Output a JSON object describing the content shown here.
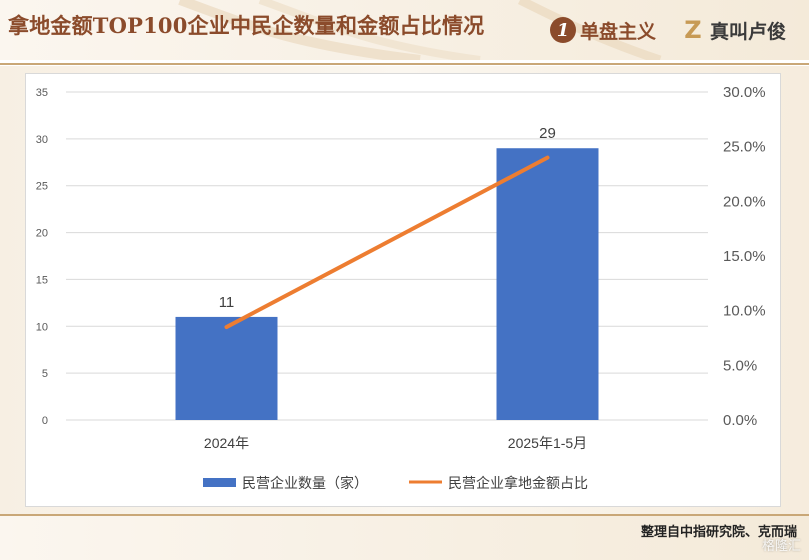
{
  "header": {
    "title": "拿地金额TOP100企业中民企数量和金额占比情况",
    "brand1_icon": "1",
    "brand1_name": "单盘主义",
    "brand2_icon": "Z",
    "brand2_name": "真叫卢俊"
  },
  "footer": {
    "source": "整理自中指研究院、克而瑞",
    "watermark": "格隆汇"
  },
  "colors": {
    "bar": "#4472c4",
    "line": "#ed7d31",
    "title": "#8b4b2b",
    "accent_gold": "#c9a777"
  },
  "chart_data": {
    "type": "bar",
    "categories": [
      "2024年",
      "2025年1-5月"
    ],
    "series": [
      {
        "name": "民营企业数量（家）",
        "type": "bar",
        "axis": "left",
        "values": [
          11,
          29
        ],
        "data_labels": [
          "11",
          "29"
        ]
      },
      {
        "name": "民营企业拿地金额占比",
        "type": "line",
        "axis": "right",
        "values": [
          8.5,
          24.0
        ]
      }
    ],
    "y_left": {
      "min": 0,
      "max": 35,
      "step": 5,
      "ticks": [
        "0",
        "5",
        "10",
        "15",
        "20",
        "25",
        "30",
        "35"
      ]
    },
    "y_right": {
      "min": 0,
      "max": 30,
      "step": 5,
      "unit": "%",
      "ticks": [
        "0.0%",
        "5.0%",
        "10.0%",
        "15.0%",
        "20.0%",
        "25.0%",
        "30.0%"
      ]
    },
    "grid": true,
    "legend_position": "bottom"
  }
}
